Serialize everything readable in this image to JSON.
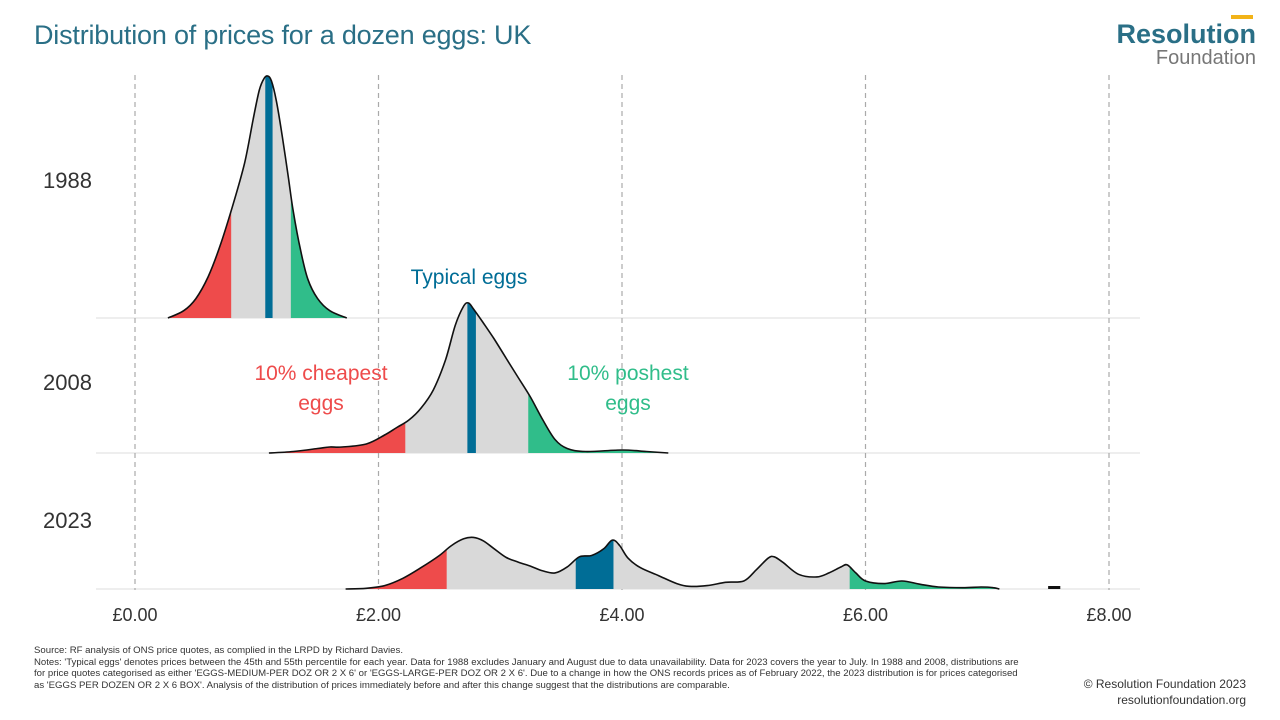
{
  "title": "Distribution of prices for a dozen eggs: UK",
  "logo": {
    "line1": "Resolution",
    "line2": "Foundation",
    "accent_color": "#f2b318",
    "brand_color": "#2a6f86"
  },
  "colors": {
    "cheapest": "#ee4b4b",
    "typical": "#006d96",
    "poshest": "#30bd8a",
    "middle": "#d9d9d9",
    "outline": "#111111"
  },
  "annotations": {
    "typical": "Typical eggs",
    "cheapest_line1": "10% cheapest",
    "cheapest_line2": "eggs",
    "poshest_line1": "10% poshest",
    "poshest_line2": "eggs"
  },
  "chart_data": {
    "type": "ridgeline",
    "title": "Distribution of prices for a dozen eggs: UK",
    "xlabel": "",
    "ylabel": "",
    "x_ticks": [
      0,
      2,
      4,
      6,
      8
    ],
    "x_tick_labels": [
      "£0.00",
      "£2.00",
      "£4.00",
      "£6.00",
      "£8.00"
    ],
    "xlim": [
      0,
      8
    ],
    "grid": "vertical dashed",
    "series": [
      {
        "name": "1988",
        "p10": 0.79,
        "p45": 1.07,
        "p55": 1.13,
        "p90": 1.28,
        "density": [
          [
            0.27,
            0.0
          ],
          [
            0.4,
            0.03
          ],
          [
            0.5,
            0.08
          ],
          [
            0.6,
            0.17
          ],
          [
            0.7,
            0.3
          ],
          [
            0.8,
            0.46
          ],
          [
            0.9,
            0.64
          ],
          [
            0.97,
            0.82
          ],
          [
            1.02,
            0.94
          ],
          [
            1.06,
            0.99
          ],
          [
            1.09,
            1.0
          ],
          [
            1.12,
            0.98
          ],
          [
            1.16,
            0.9
          ],
          [
            1.21,
            0.75
          ],
          [
            1.26,
            0.58
          ],
          [
            1.3,
            0.44
          ],
          [
            1.36,
            0.28
          ],
          [
            1.42,
            0.16
          ],
          [
            1.5,
            0.08
          ],
          [
            1.6,
            0.03
          ],
          [
            1.74,
            0.0
          ]
        ]
      },
      {
        "name": "2008",
        "p10": 2.22,
        "p45": 2.73,
        "p55": 2.8,
        "p90": 3.23,
        "density": [
          [
            1.1,
            0.0
          ],
          [
            1.3,
            0.01
          ],
          [
            1.5,
            0.03
          ],
          [
            1.6,
            0.04
          ],
          [
            1.7,
            0.04
          ],
          [
            1.9,
            0.06
          ],
          [
            2.05,
            0.12
          ],
          [
            2.15,
            0.17
          ],
          [
            2.25,
            0.22
          ],
          [
            2.35,
            0.3
          ],
          [
            2.45,
            0.42
          ],
          [
            2.55,
            0.62
          ],
          [
            2.63,
            0.85
          ],
          [
            2.7,
            0.98
          ],
          [
            2.74,
            1.0
          ],
          [
            2.78,
            0.96
          ],
          [
            2.85,
            0.88
          ],
          [
            2.95,
            0.76
          ],
          [
            3.05,
            0.63
          ],
          [
            3.15,
            0.5
          ],
          [
            3.25,
            0.37
          ],
          [
            3.35,
            0.22
          ],
          [
            3.45,
            0.09
          ],
          [
            3.55,
            0.03
          ],
          [
            3.7,
            0.01
          ],
          [
            4.0,
            0.02
          ],
          [
            4.2,
            0.01
          ],
          [
            4.38,
            0.0
          ]
        ]
      },
      {
        "name": "2023",
        "p10": 2.56,
        "p45": 3.62,
        "p55": 3.93,
        "p90": 5.87,
        "density": [
          [
            1.73,
            0.0
          ],
          [
            1.9,
            0.01
          ],
          [
            2.05,
            0.05
          ],
          [
            2.2,
            0.16
          ],
          [
            2.35,
            0.32
          ],
          [
            2.5,
            0.5
          ],
          [
            2.6,
            0.65
          ],
          [
            2.7,
            0.75
          ],
          [
            2.78,
            0.77
          ],
          [
            2.86,
            0.72
          ],
          [
            2.95,
            0.6
          ],
          [
            3.05,
            0.47
          ],
          [
            3.15,
            0.4
          ],
          [
            3.25,
            0.34
          ],
          [
            3.35,
            0.27
          ],
          [
            3.45,
            0.24
          ],
          [
            3.55,
            0.33
          ],
          [
            3.65,
            0.48
          ],
          [
            3.75,
            0.5
          ],
          [
            3.85,
            0.6
          ],
          [
            3.92,
            0.73
          ],
          [
            3.98,
            0.65
          ],
          [
            4.05,
            0.46
          ],
          [
            4.15,
            0.32
          ],
          [
            4.3,
            0.2
          ],
          [
            4.45,
            0.08
          ],
          [
            4.55,
            0.04
          ],
          [
            4.7,
            0.05
          ],
          [
            4.85,
            0.1
          ],
          [
            5.0,
            0.12
          ],
          [
            5.1,
            0.28
          ],
          [
            5.2,
            0.46
          ],
          [
            5.25,
            0.48
          ],
          [
            5.32,
            0.4
          ],
          [
            5.45,
            0.22
          ],
          [
            5.6,
            0.18
          ],
          [
            5.7,
            0.24
          ],
          [
            5.8,
            0.33
          ],
          [
            5.85,
            0.36
          ],
          [
            5.92,
            0.24
          ],
          [
            6.0,
            0.12
          ],
          [
            6.15,
            0.08
          ],
          [
            6.3,
            0.12
          ],
          [
            6.45,
            0.07
          ],
          [
            6.6,
            0.03
          ],
          [
            6.8,
            0.02
          ],
          [
            6.95,
            0.03
          ],
          [
            7.05,
            0.02
          ],
          [
            7.1,
            0.0
          ]
        ],
        "outlier": [
          7.5,
          7.6
        ]
      }
    ]
  },
  "footnote": {
    "source": "Source: RF analysis of ONS price quotes, as complied in the LRPD by Richard Davies.",
    "notes": "Notes: 'Typical eggs' denotes prices between the 45th and 55th percentile for each year. Data for 1988 excludes January and August due to data unavailability. Data for 2023 covers the year to July. In 1988 and 2008, distributions are for price quotes categorised as either 'EGGS-MEDIUM-PER DOZ OR 2 X 6' or 'EGGS-LARGE-PER DOZ OR 2 X 6'. Due to a change in how the ONS records prices as of February 2022, the 2023 distribution is for prices categorised as 'EGGS PER DOZEN OR 2 X 6 BOX'. Analysis of the distribution of prices immediately before and after this change suggest that the distributions are comparable."
  },
  "credit": {
    "line1": "© Resolution Foundation 2023",
    "line2": "resolutionfoundation.org"
  }
}
